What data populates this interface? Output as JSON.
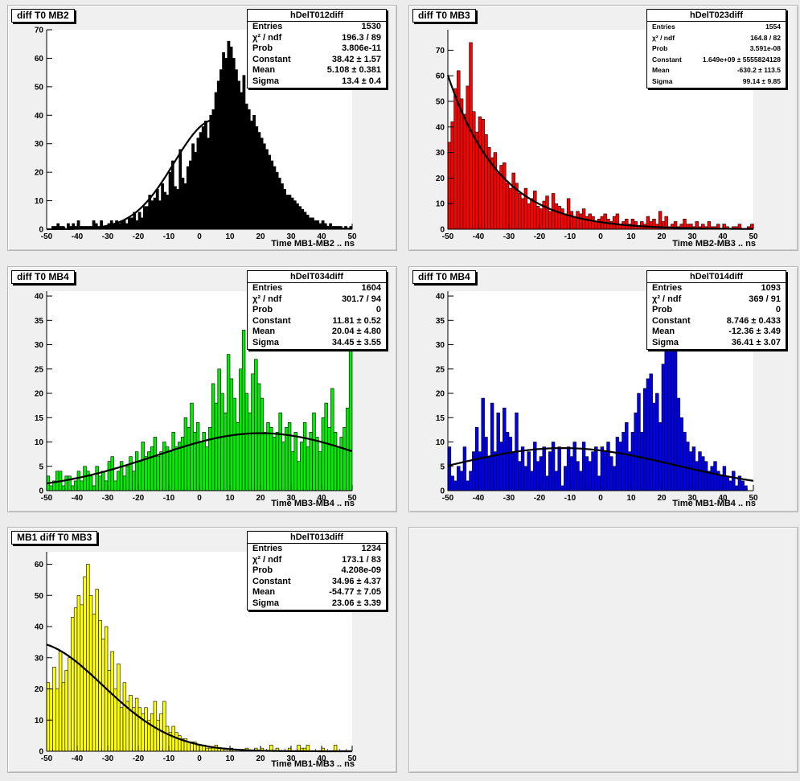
{
  "chart_data": [
    {
      "type": "bar",
      "pad_title": "diff T0 MB2",
      "stats_name": "hDelT012diff",
      "stats": [
        [
          "Entries",
          "1530"
        ],
        [
          "χ² / ndf",
          "196.3 / 89"
        ],
        [
          "Prob",
          "3.806e-11"
        ],
        [
          "Constant",
          "38.42 ± 1.57"
        ],
        [
          "Mean",
          "5.108 ± 0.381"
        ],
        [
          "Sigma",
          "13.4 ± 0.4"
        ]
      ],
      "xlabel": "Time MB1-MB2  ..  ns",
      "xlim": [
        -50,
        50
      ],
      "ylim": [
        0,
        70
      ],
      "yticks": [
        0,
        10,
        20,
        30,
        40,
        50,
        60,
        70
      ],
      "xticks": [
        -50,
        -40,
        -30,
        -20,
        -10,
        0,
        10,
        20,
        30,
        40,
        50
      ],
      "fill": "#000000",
      "fit": {
        "constant": 38.42,
        "mean": 5.108,
        "sigma": 13.4
      },
      "values": [
        0,
        0,
        1,
        1,
        2,
        1,
        1,
        0,
        2,
        1,
        2,
        1,
        3,
        1,
        1,
        1,
        1,
        1,
        3,
        2,
        1,
        3,
        1,
        1,
        2,
        3,
        2,
        3,
        2,
        3,
        3,
        2,
        4,
        4,
        6,
        3,
        6,
        4,
        8,
        8,
        12,
        10,
        11,
        14,
        10,
        16,
        13,
        12,
        20,
        24,
        15,
        14,
        28,
        18,
        16,
        22,
        24,
        30,
        27,
        32,
        34,
        36,
        38,
        32,
        40,
        42,
        48,
        52,
        56,
        62,
        60,
        66,
        64,
        60,
        56,
        52,
        48,
        54,
        44,
        42,
        38,
        40,
        36,
        34,
        32,
        30,
        28,
        26,
        24,
        22,
        20,
        18,
        16,
        14,
        12,
        12,
        11,
        10,
        9,
        8,
        7,
        6,
        5,
        4,
        4,
        3,
        3,
        2,
        3,
        2,
        1,
        2,
        1,
        1,
        1,
        1,
        0,
        1,
        0,
        1
      ]
    },
    {
      "type": "bar",
      "pad_title": "diff T0 MB3",
      "stats_name": "hDelT023diff",
      "stats": [
        [
          "Entries",
          "1554"
        ],
        [
          "χ² / ndf",
          "164.8 / 82"
        ],
        [
          "Prob",
          "3.591e-08"
        ],
        [
          "Constant",
          "1.649e+09 ± 5555824128"
        ],
        [
          "Mean",
          "-630.2 ± 113.5"
        ],
        [
          "Sigma",
          "99.14 ± 9.85"
        ]
      ],
      "xlabel": "Time MB2-MB3  ..  ns",
      "xlim": [
        -50,
        50
      ],
      "ylim": [
        0,
        78
      ],
      "yticks": [
        0,
        10,
        20,
        30,
        40,
        50,
        60,
        70
      ],
      "xticks": [
        -50,
        -40,
        -30,
        -20,
        -10,
        0,
        10,
        20,
        30,
        40,
        50
      ],
      "fill": "#ff0000",
      "fit": {
        "constant": 1649000000.0,
        "mean": -630.2,
        "sigma": 99.14
      },
      "values": [
        34,
        42,
        55,
        62,
        51,
        45,
        56,
        73,
        46,
        38,
        44,
        43,
        37,
        32,
        28,
        30,
        22,
        25,
        26,
        18,
        16,
        22,
        18,
        14,
        12,
        16,
        10,
        12,
        15,
        9,
        8,
        11,
        13,
        7,
        14,
        10,
        9,
        8,
        6,
        12,
        7,
        5,
        7,
        6,
        8,
        5,
        6,
        5,
        3,
        4,
        5,
        6,
        4,
        3,
        5,
        6,
        2,
        3,
        4,
        2,
        4,
        3,
        1,
        3,
        2,
        5,
        3,
        4,
        2,
        7,
        3,
        5,
        1,
        2,
        3,
        1,
        2,
        4,
        2,
        2,
        1,
        3,
        1,
        2,
        1,
        3,
        1,
        1,
        2,
        0,
        2,
        1,
        0,
        1,
        1,
        2,
        0,
        0,
        1,
        2
      ]
    },
    {
      "type": "bar",
      "pad_title": "diff T0 MB4",
      "stats_name": "hDelT034diff",
      "stats": [
        [
          "Entries",
          "1604"
        ],
        [
          "χ² / ndf",
          "301.7 / 94"
        ],
        [
          "Prob",
          "0"
        ],
        [
          "Constant",
          "11.81 ± 0.52"
        ],
        [
          "Mean",
          "20.04 ± 4.80"
        ],
        [
          "Sigma",
          "34.45 ± 3.55"
        ]
      ],
      "xlabel": "Time MB3-MB4  ..  ns",
      "xlim": [
        -50,
        50
      ],
      "ylim": [
        0,
        41
      ],
      "yticks": [
        0,
        5,
        10,
        15,
        20,
        25,
        30,
        35,
        40
      ],
      "xticks": [
        -50,
        -40,
        -30,
        -20,
        -10,
        0,
        10,
        20,
        30,
        40,
        50
      ],
      "fill": "#00ee00",
      "fit": {
        "constant": 11.81,
        "mean": 20.04,
        "sigma": 34.45
      },
      "values": [
        3,
        1,
        2,
        4,
        4,
        1,
        3,
        3,
        1,
        2,
        4,
        2,
        5,
        4,
        3,
        1,
        5,
        3,
        4,
        2,
        6,
        7,
        2,
        4,
        6,
        3,
        5,
        7,
        4,
        8,
        6,
        10,
        7,
        8,
        9,
        11,
        7,
        8,
        10,
        9,
        8,
        12,
        9,
        10,
        11,
        15,
        13,
        18,
        12,
        14,
        10,
        12,
        9,
        13,
        22,
        18,
        25,
        20,
        16,
        28,
        23,
        19,
        14,
        25,
        33,
        20,
        16,
        24,
        27,
        22,
        19,
        12,
        14,
        13,
        11,
        12,
        16,
        10,
        13,
        14,
        8,
        12,
        6,
        10,
        14,
        9,
        12,
        16,
        11,
        8,
        15,
        18,
        13,
        21,
        12,
        9,
        11,
        13,
        17,
        40
      ]
    },
    {
      "type": "bar",
      "pad_title": "diff T0 MB4",
      "stats_name": "hDelT014diff",
      "stats": [
        [
          "Entries",
          "1093"
        ],
        [
          "χ² / ndf",
          "369 / 91"
        ],
        [
          "Prob",
          "0"
        ],
        [
          "Constant",
          "8.746 ± 0.433"
        ],
        [
          "Mean",
          "-12.36 ± 3.49"
        ],
        [
          "Sigma",
          "36.41 ± 3.07"
        ]
      ],
      "xlabel": "Time MB1-MB4  ..  ns",
      "xlim": [
        -50,
        50
      ],
      "ylim": [
        0,
        41
      ],
      "yticks": [
        0,
        5,
        10,
        15,
        20,
        25,
        30,
        35,
        40
      ],
      "xticks": [
        -50,
        -40,
        -30,
        -20,
        -10,
        0,
        10,
        20,
        30,
        40,
        50
      ],
      "fill": "#0000ee",
      "fit": {
        "constant": 8.746,
        "mean": -12.36,
        "sigma": 36.41
      },
      "values": [
        9,
        3,
        2,
        5,
        4,
        9,
        2,
        4,
        8,
        13,
        8,
        19,
        11,
        7,
        18,
        8,
        16,
        10,
        17,
        12,
        11,
        8,
        16,
        6,
        9,
        5,
        8,
        4,
        10,
        6,
        7,
        9,
        3,
        8,
        10,
        4,
        9,
        1,
        5,
        9,
        7,
        10,
        6,
        4,
        10,
        7,
        6,
        8,
        9,
        3,
        9,
        8,
        10,
        7,
        5,
        11,
        10,
        12,
        14,
        8,
        12,
        16,
        20,
        12,
        21,
        23,
        24,
        18,
        20,
        14,
        26,
        30,
        40,
        37,
        33,
        19,
        15,
        12,
        10,
        8,
        9,
        6,
        8,
        7,
        6,
        4,
        5,
        6,
        4,
        3,
        5,
        3,
        2,
        4,
        1,
        3,
        2,
        1,
        0,
        0
      ]
    },
    {
      "type": "bar",
      "pad_title": "MB1 diff T0 MB3",
      "stats_name": "hDelT013diff",
      "stats": [
        [
          "Entries",
          "1234"
        ],
        [
          "χ² / ndf",
          "173.1 / 83"
        ],
        [
          "Prob",
          "4.208e-09"
        ],
        [
          "Constant",
          "34.96 ± 4.37"
        ],
        [
          "Mean",
          "-54.77 ± 7.05"
        ],
        [
          "Sigma",
          "23.06 ± 3.39"
        ]
      ],
      "xlabel": "Time MB1-MB3  ..  ns",
      "xlim": [
        -50,
        50
      ],
      "ylim": [
        0,
        64
      ],
      "yticks": [
        0,
        10,
        20,
        30,
        40,
        50,
        60
      ],
      "xticks": [
        -50,
        -40,
        -30,
        -20,
        -10,
        0,
        10,
        20,
        30,
        40,
        50
      ],
      "fill": "#ffff00",
      "fit": {
        "constant": 34.96,
        "mean": -54.77,
        "sigma": 23.06
      },
      "values": [
        22,
        20,
        27,
        20,
        32,
        22,
        26,
        30,
        43,
        46,
        50,
        47,
        56,
        60,
        50,
        44,
        52,
        42,
        36,
        40,
        26,
        32,
        20,
        28,
        14,
        22,
        16,
        18,
        14,
        17,
        14,
        12,
        14,
        10,
        12,
        16,
        10,
        12,
        16,
        8,
        6,
        8,
        6,
        5,
        4,
        4,
        3,
        3,
        3,
        2,
        2,
        2,
        1,
        1,
        1,
        2,
        1,
        1,
        1,
        0,
        1,
        0,
        0,
        0,
        0,
        1,
        0,
        0,
        1,
        0,
        1,
        0,
        0,
        2,
        0,
        1,
        0,
        0,
        0,
        1,
        0,
        0,
        2,
        1,
        1,
        2,
        0,
        0,
        0,
        0,
        1,
        0,
        0,
        0,
        2,
        0,
        0,
        0,
        0,
        0
      ]
    }
  ]
}
